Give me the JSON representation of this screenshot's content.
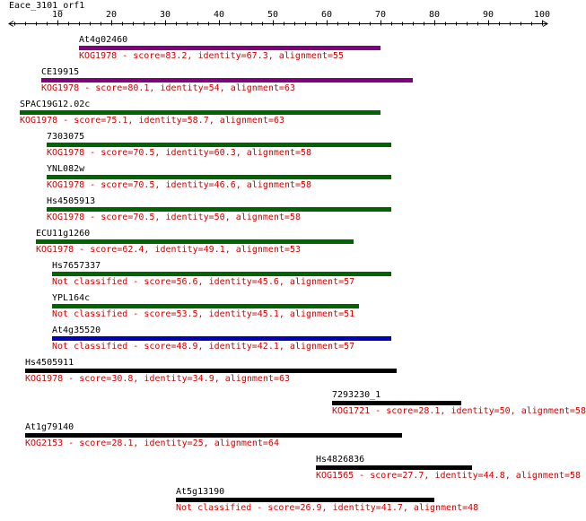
{
  "title": "Eace_3101_orf1",
  "axis": {
    "min": 1,
    "max": 101,
    "labels": [
      10,
      20,
      30,
      40,
      50,
      60,
      70,
      80,
      90,
      100
    ]
  },
  "colors": {
    "purple": "#800080",
    "green": "#006400",
    "blue": "#0000b4",
    "black": "#000000",
    "label": "#d40000"
  },
  "hits": [
    {
      "name": "At4g02460",
      "start": 14,
      "end": 70,
      "color": "purple",
      "desc": "KOG1978 - score=83.2, identity=67.3, alignment=55"
    },
    {
      "name": "CE19915",
      "start": 7,
      "end": 76,
      "color": "purple",
      "desc": "KOG1978 - score=80.1, identity=54, alignment=63"
    },
    {
      "name": "SPAC19G12.02c",
      "start": 3,
      "end": 70,
      "color": "green",
      "desc": "KOG1978 - score=75.1, identity=58.7, alignment=63"
    },
    {
      "name": "7303075",
      "start": 8,
      "end": 72,
      "color": "green",
      "desc": "KOG1978 - score=70.5, identity=60.3, alignment=58"
    },
    {
      "name": "YNL082w",
      "start": 8,
      "end": 72,
      "color": "green",
      "desc": "KOG1978 - score=70.5, identity=46.6, alignment=58"
    },
    {
      "name": "Hs4505913",
      "start": 8,
      "end": 72,
      "color": "green",
      "desc": "KOG1978 - score=70.5, identity=50, alignment=58"
    },
    {
      "name": "ECU11g1260",
      "start": 6,
      "end": 65,
      "color": "green",
      "desc": "KOG1978 - score=62.4, identity=49.1, alignment=53"
    },
    {
      "name": "Hs7657337",
      "start": 9,
      "end": 72,
      "color": "green",
      "desc": "Not classified - score=56.6, identity=45.6, alignment=57"
    },
    {
      "name": "YPL164c",
      "start": 9,
      "end": 66,
      "color": "green",
      "desc": "Not classified - score=53.5, identity=45.1, alignment=51"
    },
    {
      "name": "At4g35520",
      "start": 9,
      "end": 72,
      "color": "blue",
      "desc": "Not classified - score=48.9, identity=42.1, alignment=57"
    },
    {
      "name": "Hs4505911",
      "start": 4,
      "end": 73,
      "color": "black",
      "desc": "KOG1978 - score=30.8, identity=34.9, alignment=63"
    },
    {
      "name": "7293230_1",
      "start": 61,
      "end": 85,
      "color": "black",
      "desc": "KOG1721 - score=28.1, identity=50, alignment=58"
    },
    {
      "name": "At1g79140",
      "start": 4,
      "end": 74,
      "color": "black",
      "desc": "KOG2153 - score=28.1, identity=25, alignment=64"
    },
    {
      "name": "Hs4826836",
      "start": 58,
      "end": 87,
      "color": "black",
      "desc": "KOG1565 - score=27.7, identity=44.8, alignment=58"
    },
    {
      "name": "At5g13190",
      "start": 32,
      "end": 80,
      "color": "black",
      "desc": "Not classified - score=26.9, identity=41.7, alignment=48"
    }
  ]
}
